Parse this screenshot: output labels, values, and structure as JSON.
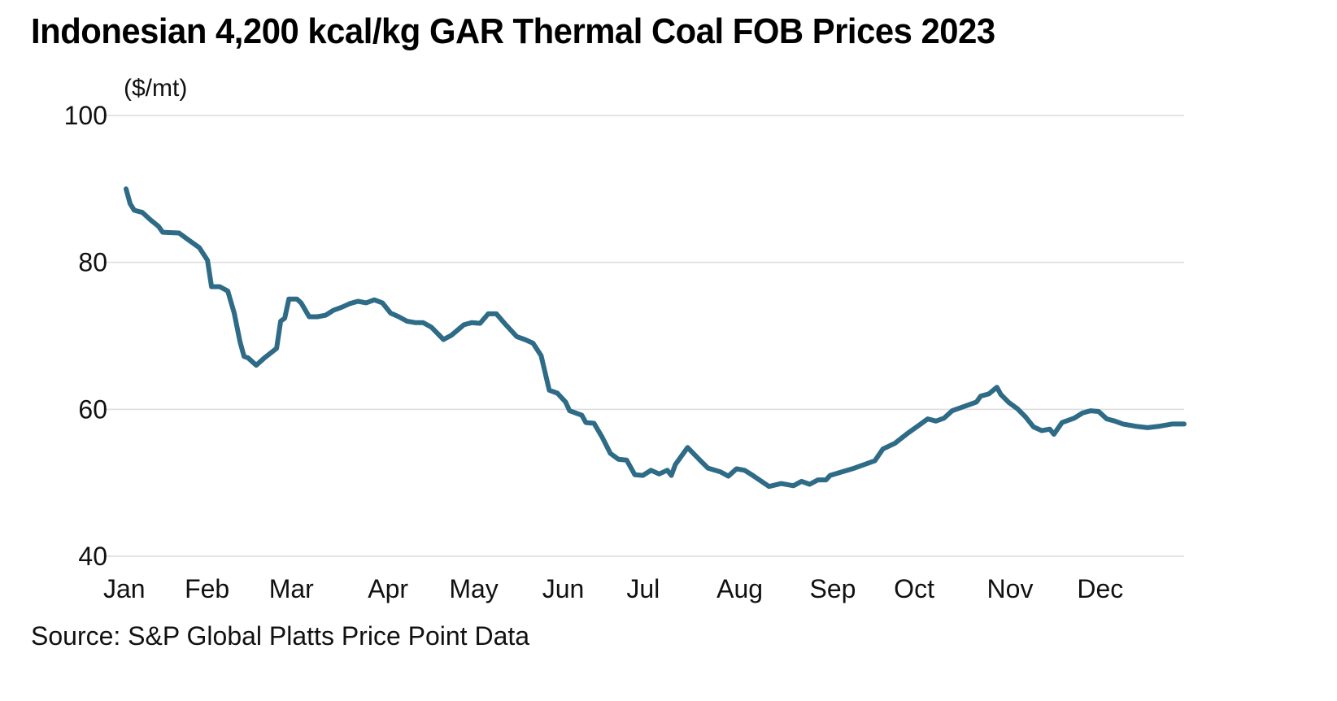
{
  "chart_data": {
    "type": "line",
    "title": "Indonesian 4,200 kcal/kg GAR Thermal Coal FOB Prices 2023",
    "ylabel": "($/mt)",
    "xlabel": "",
    "source": "Source: S&P Global Platts Price Point Data",
    "ylim": [
      40,
      100
    ],
    "yticks": [
      40,
      60,
      80,
      100
    ],
    "xlim_days": [
      0,
      364
    ],
    "xticks": [
      {
        "label": "Jan",
        "day": 0
      },
      {
        "label": "Feb",
        "day": 28
      },
      {
        "label": "Mar",
        "day": 57
      },
      {
        "label": "Apr",
        "day": 91
      },
      {
        "label": "May",
        "day": 119
      },
      {
        "label": "Jun",
        "day": 151
      },
      {
        "label": "Jul",
        "day": 180
      },
      {
        "label": "Aug",
        "day": 211
      },
      {
        "label": "Sep",
        "day": 243
      },
      {
        "label": "Oct",
        "day": 272
      },
      {
        "label": "Nov",
        "day": 304
      },
      {
        "label": "Dec",
        "day": 335
      }
    ],
    "grid": true,
    "legend": "none",
    "series": [
      {
        "name": "Indonesian 4,200 kcal/kg GAR FOB",
        "color": "#2e6b87",
        "points": [
          [
            0,
            90.0
          ],
          [
            1.4,
            88.0
          ],
          [
            2.8,
            87.1
          ],
          [
            5.6,
            86.8
          ],
          [
            8.4,
            85.8
          ],
          [
            11.2,
            84.9
          ],
          [
            12.6,
            84.1
          ],
          [
            18.2,
            84.0
          ],
          [
            21.0,
            83.2
          ],
          [
            25.2,
            82.0
          ],
          [
            28.0,
            80.3
          ],
          [
            29.4,
            76.7
          ],
          [
            32.2,
            76.7
          ],
          [
            35.0,
            76.1
          ],
          [
            37.2,
            73.1
          ],
          [
            39.2,
            69.2
          ],
          [
            40.6,
            67.2
          ],
          [
            42.0,
            67.0
          ],
          [
            44.8,
            66.0
          ],
          [
            47.6,
            67.0
          ],
          [
            51.8,
            68.3
          ],
          [
            53.2,
            72.0
          ],
          [
            54.6,
            72.4
          ],
          [
            56.0,
            75.0
          ],
          [
            58.8,
            75.0
          ],
          [
            60.2,
            74.5
          ],
          [
            63.0,
            72.6
          ],
          [
            65.8,
            72.6
          ],
          [
            68.6,
            72.8
          ],
          [
            71.4,
            73.5
          ],
          [
            74.2,
            73.9
          ],
          [
            77.0,
            74.4
          ],
          [
            79.8,
            74.7
          ],
          [
            82.6,
            74.5
          ],
          [
            85.4,
            74.9
          ],
          [
            88.2,
            74.5
          ],
          [
            91.0,
            73.1
          ],
          [
            93.8,
            72.6
          ],
          [
            96.6,
            72.0
          ],
          [
            99.4,
            71.8
          ],
          [
            102.2,
            71.8
          ],
          [
            105.0,
            71.2
          ],
          [
            109.2,
            69.5
          ],
          [
            112.0,
            70.1
          ],
          [
            116.2,
            71.5
          ],
          [
            119.0,
            71.8
          ],
          [
            121.8,
            71.7
          ],
          [
            124.6,
            73.0
          ],
          [
            127.4,
            73.0
          ],
          [
            130.2,
            71.7
          ],
          [
            134.4,
            69.9
          ],
          [
            137.2,
            69.5
          ],
          [
            140.0,
            69.0
          ],
          [
            142.8,
            67.3
          ],
          [
            145.6,
            62.6
          ],
          [
            148.4,
            62.2
          ],
          [
            151.2,
            61.0
          ],
          [
            152.6,
            59.8
          ],
          [
            156.8,
            59.2
          ],
          [
            158.2,
            58.2
          ],
          [
            161.0,
            58.1
          ],
          [
            163.8,
            56.2
          ],
          [
            166.6,
            54.0
          ],
          [
            169.4,
            53.2
          ],
          [
            172.2,
            53.1
          ],
          [
            175.0,
            51.1
          ],
          [
            177.8,
            51.0
          ],
          [
            180.6,
            51.7
          ],
          [
            183.4,
            51.2
          ],
          [
            186.2,
            51.7
          ],
          [
            187.6,
            51.0
          ],
          [
            189.0,
            52.5
          ],
          [
            193.2,
            54.8
          ],
          [
            197.4,
            53.1
          ],
          [
            200.2,
            52.0
          ],
          [
            204.4,
            51.5
          ],
          [
            207.2,
            50.9
          ],
          [
            210.0,
            51.9
          ],
          [
            212.8,
            51.7
          ],
          [
            215.6,
            51.0
          ],
          [
            221.2,
            49.5
          ],
          [
            225.4,
            49.9
          ],
          [
            229.6,
            49.6
          ],
          [
            232.4,
            50.2
          ],
          [
            235.2,
            49.8
          ],
          [
            238.0,
            50.4
          ],
          [
            240.8,
            50.4
          ],
          [
            242.2,
            51.0
          ],
          [
            246.4,
            51.5
          ],
          [
            250.6,
            52.0
          ],
          [
            254.8,
            52.6
          ],
          [
            257.6,
            53.0
          ],
          [
            260.4,
            54.6
          ],
          [
            264.6,
            55.4
          ],
          [
            268.8,
            56.7
          ],
          [
            273.0,
            57.9
          ],
          [
            275.8,
            58.7
          ],
          [
            278.6,
            58.4
          ],
          [
            281.4,
            58.8
          ],
          [
            284.2,
            59.8
          ],
          [
            289.8,
            60.6
          ],
          [
            292.6,
            61.0
          ],
          [
            294.0,
            61.8
          ],
          [
            296.8,
            62.1
          ],
          [
            299.6,
            63.0
          ],
          [
            301.0,
            62.0
          ],
          [
            303.8,
            60.9
          ],
          [
            306.6,
            60.1
          ],
          [
            309.4,
            59.0
          ],
          [
            312.2,
            57.6
          ],
          [
            315.0,
            57.1
          ],
          [
            317.8,
            57.3
          ],
          [
            319.2,
            56.6
          ],
          [
            322.0,
            58.2
          ],
          [
            326.2,
            58.8
          ],
          [
            329.0,
            59.5
          ],
          [
            331.8,
            59.8
          ],
          [
            334.6,
            59.7
          ],
          [
            337.4,
            58.7
          ],
          [
            340.2,
            58.4
          ],
          [
            343.0,
            58.0
          ],
          [
            347.2,
            57.7
          ],
          [
            351.4,
            57.5
          ],
          [
            355.6,
            57.7
          ],
          [
            359.8,
            58.0
          ],
          [
            364.0,
            58.0
          ]
        ]
      }
    ]
  },
  "header": {
    "title": "Indonesian 4,200 kcal/kg GAR Thermal Coal FOB Prices 2023",
    "unit": "($/mt)"
  },
  "footer": {
    "source": "Source: S&P Global Platts Price Point Data"
  },
  "style": {
    "line_color": "#2e6b87",
    "grid_color": "#dcdcdc"
  }
}
